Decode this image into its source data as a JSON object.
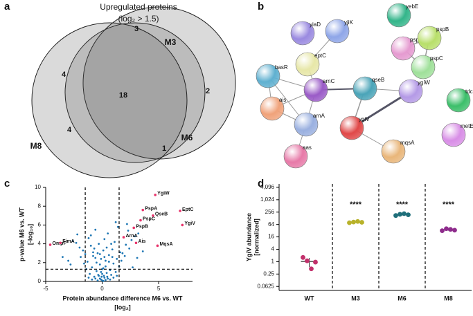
{
  "chart_data": [
    {
      "type": "venn",
      "panel": "a",
      "title": "Upregulated proteins",
      "subtitle": "(log₂ > 1.5)",
      "sets": [
        "M3",
        "M6",
        "M8"
      ],
      "counts": [
        3,
        4,
        18,
        2,
        4,
        1
      ]
    },
    {
      "type": "network",
      "panel": "b",
      "nodes": [
        "yiaD",
        "yjiK",
        "yebE",
        "eptC",
        "pspA",
        "pspB",
        "pspC",
        "basR",
        "arnC",
        "qseB",
        "ygiW",
        "tdcB",
        "ais",
        "arnA",
        "ygiV",
        "metE",
        "aas",
        "mqsA"
      ]
    },
    {
      "type": "scatter",
      "panel": "c",
      "x_label": "Protein abundance difference M6 vs. WT",
      "x_label2": "[log₂]",
      "y_label": "p-value M6 vs. WT",
      "y_label2": "[-log₁₀]",
      "xlim": [
        -5,
        8
      ],
      "xticks": [
        -5,
        0,
        5
      ],
      "ylim": [
        0,
        10
      ],
      "yticks": [
        0,
        2,
        4,
        6,
        8,
        10
      ],
      "thresholds_x": [
        -1.5,
        1.5
      ],
      "threshold_y": 1.3,
      "color": "#1f77b4",
      "highlight_color": "#e8336b",
      "x": [
        -0.1,
        0.2,
        -0.3,
        0.4,
        -0.5,
        0.1,
        -0.2,
        0.3,
        -0.6,
        0.6,
        -0.8,
        0.9,
        -1.0,
        1.1,
        -1.2,
        0.7,
        -0.9,
        1.0,
        -1.3,
        1.3,
        -1.5,
        1.6,
        -1.7,
        1.8,
        -2.0,
        2.1,
        -2.3,
        2.4,
        -0.4,
        0.5,
        -0.7,
        0.8,
        -1.1,
        1.2,
        -1.4,
        1.5,
        -0.2,
        0.1,
        -0.3,
        0.2,
        0.0,
        -0.1,
        0.3,
        -0.5,
        0.6,
        -0.8,
        0.9,
        -1.6,
        1.7,
        -1.9,
        2.0,
        2.6,
        -2.6,
        2.9,
        3.2,
        2.3,
        -2.2,
        0.5,
        -0.6,
        1.4,
        -3.0,
        3.1,
        -2.8,
        2.7,
        -3.5,
        3.6,
        0.0,
        0.1,
        -0.2,
        0.3,
        -0.05,
        0.15,
        -0.35,
        0.45,
        -0.6,
        0.7,
        -0.9,
        1.0,
        -1.2,
        1.3,
        0.0,
        -0.1,
        0.2,
        -0.4,
        0.4,
        -0.7,
        0.8,
        -1.0,
        1.2,
        2.2
      ],
      "values": [
        0.2,
        0.4,
        0.6,
        0.9,
        1.1,
        1.4,
        1.8,
        2.2,
        2.5,
        2.8,
        3.1,
        3.4,
        3.8,
        4.2,
        4.6,
        1.2,
        1.5,
        1.9,
        2.1,
        2.4,
        2.9,
        3.1,
        3.3,
        3.0,
        3.6,
        3.9,
        4.1,
        3.5,
        0.1,
        0.3,
        0.5,
        0.7,
        0.8,
        1.0,
        1.3,
        1.6,
        2.9,
        3.3,
        4.0,
        4.5,
        0.8,
        1.0,
        1.6,
        2.0,
        2.1,
        2.7,
        2.6,
        1.9,
        2.2,
        2.6,
        2.7,
        4.4,
        4.3,
        4.8,
        5.1,
        5.4,
        5.0,
        5.1,
        5.5,
        5.8,
        2.2,
        2.5,
        1.8,
        1.5,
        2.6,
        3.2,
        0.1,
        0.05,
        0.3,
        0.15,
        0.5,
        0.6,
        0.7,
        0.5,
        0.3,
        0.2,
        0.2,
        0.4,
        0.4,
        0.6,
        1.3,
        2.4,
        2.6,
        3.0,
        3.6,
        3.5,
        4.0,
        4.9,
        6.3,
        6.1
      ],
      "labeled": [
        {
          "label": "YgiW",
          "x": 4.7,
          "y": 9.2
        },
        {
          "label": "PspA",
          "x": 3.6,
          "y": 7.6
        },
        {
          "label": "QseB",
          "x": 4.5,
          "y": 7.0
        },
        {
          "label": "EptC",
          "x": 6.9,
          "y": 7.5
        },
        {
          "label": "PspC",
          "x": 3.4,
          "y": 6.5
        },
        {
          "label": "YgiV",
          "x": 7.1,
          "y": 6.0
        },
        {
          "label": "PspB",
          "x": 2.8,
          "y": 5.7
        },
        {
          "label": "ArnA",
          "x": 1.9,
          "y": 4.7
        },
        {
          "label": "Ais",
          "x": 3.0,
          "y": 4.1
        },
        {
          "label": "MqsA",
          "x": 4.9,
          "y": 3.8
        },
        {
          "label": "OmpF",
          "x": -4.6,
          "y": 3.9
        },
        {
          "label": "FimA",
          "x": -3.7,
          "y": 4.1
        }
      ]
    },
    {
      "type": "dot",
      "panel": "d",
      "y_label": "YgiV abundance",
      "y_label2": "[normalized]",
      "log_scale": 2,
      "categories": [
        "WT",
        "M3",
        "M6",
        "M8"
      ],
      "ylim": [
        0.04,
        6000
      ],
      "yticks": [
        0.0625,
        0.25,
        1,
        4,
        16,
        64,
        256,
        {
          "value": 1024,
          "label": "1,024"
        },
        {
          "value": 4096,
          "label": "4,096"
        }
      ],
      "significance": [
        null,
        "****",
        "****",
        "****"
      ],
      "series": [
        {
          "name": "WT",
          "color": "#c2306b",
          "values": [
            1.6,
            1.1,
            0.45,
            0.95
          ]
        },
        {
          "name": "M3",
          "color": "#b8b22a",
          "values": [
            78,
            84,
            90,
            82
          ]
        },
        {
          "name": "M6",
          "color": "#1f6f7a",
          "values": [
            175,
            200,
            215,
            190
          ]
        },
        {
          "name": "M8",
          "color": "#8e2c8c",
          "values": [
            32,
            40,
            37,
            34
          ]
        }
      ]
    }
  ]
}
